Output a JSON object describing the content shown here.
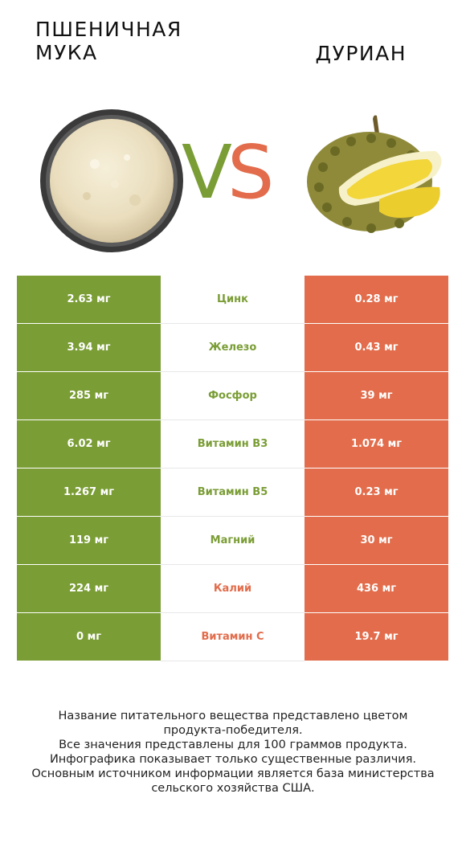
{
  "header": {
    "left_title_line1": "Пшеничная",
    "left_title_line2": "мука",
    "right_title": "Дуриан",
    "vs_v": "V",
    "vs_s": "S"
  },
  "colors": {
    "left_winner": "#7a9d35",
    "right_winner": "#e26c4b"
  },
  "rows": [
    {
      "left": "2.63 мг",
      "nutrient": "Цинк",
      "right": "0.28 мг",
      "winner": "left"
    },
    {
      "left": "3.94 мг",
      "nutrient": "Железо",
      "right": "0.43 мг",
      "winner": "left"
    },
    {
      "left": "285 мг",
      "nutrient": "Фосфор",
      "right": "39 мг",
      "winner": "left"
    },
    {
      "left": "6.02 мг",
      "nutrient": "Витамин B3",
      "right": "1.074 мг",
      "winner": "left"
    },
    {
      "left": "1.267 мг",
      "nutrient": "Витамин B5",
      "right": "0.23 мг",
      "winner": "left"
    },
    {
      "left": "119 мг",
      "nutrient": "Магний",
      "right": "30 мг",
      "winner": "left"
    },
    {
      "left": "224 мг",
      "nutrient": "Калий",
      "right": "436 мг",
      "winner": "right"
    },
    {
      "left": "0 мг",
      "nutrient": "Витамин C",
      "right": "19.7 мг",
      "winner": "right"
    }
  ],
  "footer": {
    "line1": "Название питательного вещества представлено цветом",
    "line2": "продукта-победителя.",
    "line3": "Все значения представлены для 100 граммов продукта.",
    "line4": "Инфографика показывает только существенные различия.",
    "line5": "Основным источником информации является база министерства",
    "line6": "сельского хозяйства США."
  }
}
